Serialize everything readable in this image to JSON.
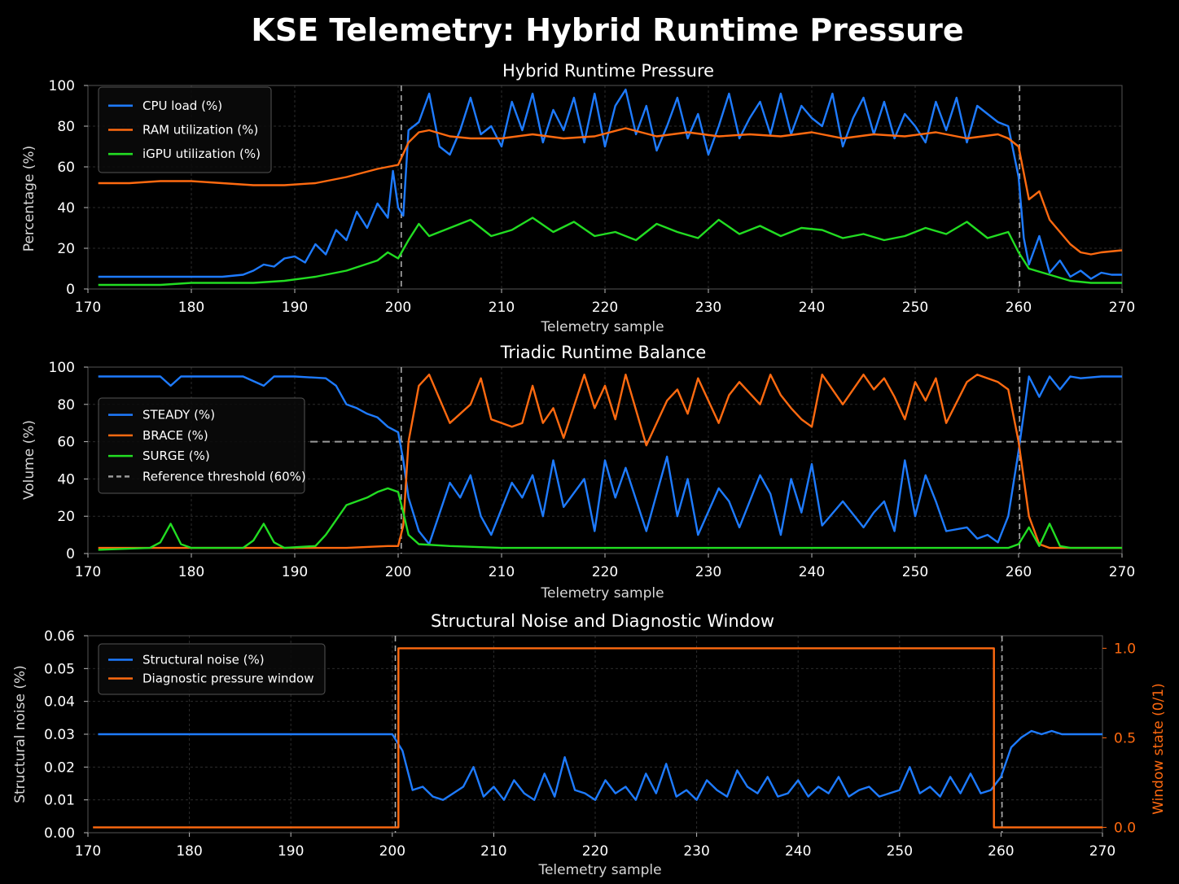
{
  "suptitle": "KSE Telemetry: Hybrid Runtime Pressure",
  "colors": {
    "background": "#000000",
    "blue": "#1e7bff",
    "orange": "#ff6a10",
    "green": "#22dd22",
    "threshold": "#9a9a9a"
  },
  "chart_data": [
    {
      "type": "line",
      "title": "Hybrid Runtime Pressure",
      "xlabel": "Telemetry sample",
      "ylabel": "Percentage (%)",
      "xlim": [
        170,
        270
      ],
      "ylim": [
        0,
        100
      ],
      "xticks": [
        170,
        180,
        190,
        200,
        210,
        220,
        230,
        240,
        250,
        260,
        270
      ],
      "yticks": [
        0,
        20,
        40,
        60,
        80,
        100
      ],
      "grid": true,
      "legend": "top-left",
      "vlines": [
        200.3,
        260.1
      ],
      "series": [
        {
          "name": "CPU load (%)",
          "color": "blue",
          "x": [
            171,
            173,
            175,
            177,
            179,
            181,
            183,
            185,
            186,
            187,
            188,
            189,
            190,
            191,
            192,
            193,
            194,
            195,
            196,
            197,
            198,
            199,
            199.5,
            200,
            200.5,
            201,
            202,
            203,
            204,
            205,
            206,
            207,
            208,
            209,
            210,
            211,
            212,
            213,
            214,
            215,
            216,
            217,
            218,
            219,
            220,
            221,
            222,
            223,
            224,
            225,
            226,
            227,
            228,
            229,
            230,
            231,
            232,
            233,
            234,
            235,
            236,
            237,
            238,
            239,
            240,
            241,
            242,
            243,
            244,
            245,
            246,
            247,
            248,
            249,
            250,
            251,
            252,
            253,
            254,
            255,
            256,
            257,
            258,
            259,
            260,
            260.5,
            261,
            262,
            263,
            264,
            265,
            266,
            267,
            268,
            269,
            270
          ],
          "values": [
            6,
            6,
            6,
            6,
            6,
            6,
            6,
            7,
            9,
            12,
            11,
            15,
            16,
            13,
            22,
            17,
            29,
            24,
            38,
            30,
            42,
            35,
            58,
            40,
            36,
            78,
            82,
            96,
            70,
            66,
            78,
            94,
            76,
            80,
            70,
            92,
            78,
            96,
            72,
            88,
            78,
            94,
            72,
            96,
            70,
            90,
            98,
            76,
            90,
            68,
            80,
            94,
            74,
            86,
            66,
            80,
            96,
            74,
            84,
            92,
            76,
            96,
            76,
            90,
            84,
            80,
            96,
            70,
            84,
            94,
            76,
            92,
            74,
            86,
            80,
            72,
            92,
            78,
            94,
            72,
            90,
            86,
            82,
            80,
            55,
            25,
            12,
            26,
            8,
            14,
            6,
            9,
            5,
            8,
            7,
            7
          ]
        },
        {
          "name": "RAM utilization (%)",
          "color": "orange",
          "x": [
            171,
            174,
            177,
            180,
            183,
            186,
            189,
            192,
            195,
            198,
            200,
            201,
            202,
            203,
            205,
            207,
            210,
            213,
            216,
            219,
            222,
            225,
            228,
            231,
            234,
            237,
            240,
            243,
            246,
            249,
            252,
            255,
            258,
            259,
            260,
            261,
            262,
            263,
            264,
            265,
            266,
            267,
            268,
            270
          ],
          "values": [
            52,
            52,
            53,
            53,
            52,
            51,
            51,
            52,
            55,
            59,
            61,
            72,
            77,
            78,
            75,
            74,
            74,
            76,
            74,
            75,
            79,
            75,
            77,
            75,
            76,
            75,
            77,
            74,
            76,
            75,
            77,
            74,
            76,
            74,
            70,
            44,
            48,
            34,
            28,
            22,
            18,
            17,
            18,
            19
          ]
        },
        {
          "name": "iGPU utilization (%)",
          "color": "green",
          "x": [
            171,
            174,
            177,
            180,
            183,
            186,
            189,
            192,
            195,
            198,
            199,
            200,
            201,
            202,
            203,
            205,
            207,
            209,
            211,
            213,
            215,
            217,
            219,
            221,
            223,
            225,
            227,
            229,
            231,
            233,
            235,
            237,
            239,
            241,
            243,
            245,
            247,
            249,
            251,
            253,
            255,
            257,
            259,
            260,
            261,
            263,
            265,
            267,
            270
          ],
          "values": [
            2,
            2,
            2,
            3,
            3,
            3,
            4,
            6,
            9,
            14,
            18,
            15,
            24,
            32,
            26,
            30,
            34,
            26,
            29,
            35,
            28,
            33,
            26,
            28,
            24,
            32,
            28,
            25,
            34,
            27,
            31,
            26,
            30,
            29,
            25,
            27,
            24,
            26,
            30,
            27,
            33,
            25,
            28,
            18,
            10,
            7,
            4,
            3,
            3
          ]
        }
      ]
    },
    {
      "type": "line",
      "title": "Triadic Runtime Balance",
      "xlabel": "Telemetry sample",
      "ylabel": "Volume (%)",
      "xlim": [
        170,
        270
      ],
      "ylim": [
        0,
        100
      ],
      "xticks": [
        170,
        180,
        190,
        200,
        210,
        220,
        230,
        240,
        250,
        260,
        270
      ],
      "yticks": [
        0,
        20,
        40,
        60,
        80,
        100
      ],
      "grid": true,
      "legend": "center-left",
      "vlines": [
        200.3,
        260.1
      ],
      "threshold": {
        "name": "Reference threshold (60%)",
        "y": 60,
        "x": [
          191.5,
          270
        ]
      },
      "series": [
        {
          "name": "STEADY (%)",
          "color": "blue",
          "x": [
            171,
            174,
            177,
            178,
            179,
            182,
            185,
            187,
            188,
            190,
            193,
            194,
            195,
            196,
            197,
            198,
            199,
            200,
            200.5,
            201,
            202,
            203,
            205,
            206,
            207,
            208,
            209,
            211,
            212,
            213,
            214,
            215,
            216,
            218,
            219,
            220,
            221,
            222,
            224,
            226,
            227,
            228,
            229,
            231,
            232,
            233,
            235,
            236,
            237,
            238,
            239,
            240,
            241,
            243,
            245,
            246,
            247,
            248,
            249,
            250,
            251,
            252,
            253,
            255,
            256,
            257,
            258,
            259,
            260,
            261,
            262,
            263,
            264,
            265,
            266,
            268,
            270
          ],
          "values": [
            95,
            95,
            95,
            90,
            95,
            95,
            95,
            90,
            95,
            95,
            94,
            90,
            80,
            78,
            75,
            73,
            68,
            65,
            50,
            30,
            12,
            5,
            38,
            30,
            42,
            20,
            10,
            38,
            30,
            42,
            20,
            50,
            25,
            40,
            12,
            50,
            30,
            46,
            12,
            52,
            20,
            40,
            10,
            35,
            28,
            14,
            42,
            32,
            10,
            40,
            22,
            48,
            15,
            28,
            14,
            22,
            28,
            12,
            50,
            20,
            42,
            28,
            12,
            14,
            8,
            10,
            6,
            20,
            55,
            95,
            84,
            95,
            88,
            95,
            94,
            95,
            95
          ]
        },
        {
          "name": "BRACE (%)",
          "color": "orange",
          "x": [
            171,
            180,
            190,
            195,
            199,
            200,
            200.5,
            201,
            202,
            203,
            205,
            206,
            207,
            208,
            209,
            211,
            212,
            213,
            214,
            215,
            216,
            218,
            219,
            220,
            221,
            222,
            224,
            226,
            227,
            228,
            229,
            231,
            232,
            233,
            235,
            236,
            237,
            238,
            239,
            240,
            241,
            243,
            245,
            246,
            247,
            248,
            249,
            250,
            251,
            252,
            253,
            255,
            256,
            257,
            258,
            259,
            260,
            261,
            262,
            263,
            270
          ],
          "values": [
            3,
            3,
            3,
            3,
            4,
            4,
            15,
            60,
            90,
            96,
            70,
            75,
            80,
            94,
            72,
            68,
            70,
            90,
            70,
            78,
            62,
            96,
            78,
            90,
            72,
            96,
            58,
            82,
            88,
            75,
            94,
            70,
            85,
            92,
            80,
            96,
            85,
            78,
            72,
            68,
            96,
            80,
            96,
            88,
            94,
            84,
            72,
            92,
            82,
            94,
            70,
            92,
            96,
            94,
            92,
            88,
            60,
            20,
            5,
            3,
            3
          ]
        },
        {
          "name": "SURGE (%)",
          "color": "green",
          "x": [
            171,
            176,
            177,
            178,
            179,
            180,
            185,
            186,
            187,
            188,
            189,
            192,
            193,
            194,
            195,
            196,
            197,
            198,
            199,
            200,
            200.5,
            201,
            202,
            205,
            210,
            215,
            220,
            225,
            230,
            235,
            240,
            245,
            250,
            255,
            259,
            260,
            261,
            262,
            263,
            264,
            265,
            270
          ],
          "values": [
            2,
            3,
            6,
            16,
            5,
            3,
            3,
            7,
            16,
            6,
            3,
            4,
            10,
            18,
            26,
            28,
            30,
            33,
            35,
            33,
            22,
            10,
            5,
            4,
            3,
            3,
            3,
            3,
            3,
            3,
            3,
            3,
            3,
            3,
            3,
            5,
            14,
            4,
            16,
            4,
            3,
            3
          ]
        }
      ]
    },
    {
      "type": "line",
      "title": "Structural Noise and Diagnostic Window",
      "xlabel": "Telemetry sample",
      "ylabel": "Structural noise (%)",
      "y2label": "Window state (0/1)",
      "xlim": [
        170,
        270
      ],
      "ylim": [
        0,
        0.06
      ],
      "y2lim": [
        -0.03,
        1.07
      ],
      "xticks": [
        170,
        180,
        190,
        200,
        210,
        220,
        230,
        240,
        250,
        260,
        270
      ],
      "yticks": [
        0.0,
        0.01,
        0.02,
        0.03,
        0.04,
        0.05,
        0.06
      ],
      "y2ticks": [
        0.0,
        0.5,
        1.0
      ],
      "grid": true,
      "legend": "top-left",
      "vlines": [
        200.3,
        260.1
      ],
      "series": [
        {
          "name": "Structural noise (%)",
          "color": "blue",
          "axis": "left",
          "x": [
            171,
            175,
            180,
            185,
            190,
            195,
            199,
            200,
            201,
            202,
            203,
            204,
            205,
            206,
            207,
            208,
            209,
            210,
            211,
            212,
            213,
            214,
            215,
            216,
            217,
            218,
            219,
            220,
            221,
            222,
            223,
            224,
            225,
            226,
            227,
            228,
            229,
            230,
            231,
            232,
            233,
            234,
            235,
            236,
            237,
            238,
            239,
            240,
            241,
            242,
            243,
            244,
            245,
            246,
            247,
            248,
            249,
            250,
            251,
            252,
            253,
            254,
            255,
            256,
            257,
            258,
            259,
            260,
            261,
            262,
            263,
            264,
            265,
            266,
            268,
            270
          ],
          "values": [
            0.03,
            0.03,
            0.03,
            0.03,
            0.03,
            0.03,
            0.03,
            0.03,
            0.025,
            0.013,
            0.014,
            0.011,
            0.01,
            0.012,
            0.014,
            0.02,
            0.011,
            0.014,
            0.01,
            0.016,
            0.012,
            0.01,
            0.018,
            0.011,
            0.023,
            0.013,
            0.012,
            0.01,
            0.016,
            0.012,
            0.014,
            0.01,
            0.018,
            0.012,
            0.021,
            0.011,
            0.013,
            0.01,
            0.016,
            0.013,
            0.011,
            0.019,
            0.014,
            0.012,
            0.017,
            0.011,
            0.012,
            0.016,
            0.011,
            0.014,
            0.012,
            0.017,
            0.011,
            0.013,
            0.014,
            0.011,
            0.012,
            0.013,
            0.02,
            0.012,
            0.014,
            0.011,
            0.017,
            0.012,
            0.018,
            0.012,
            0.013,
            0.017,
            0.026,
            0.029,
            0.031,
            0.03,
            0.031,
            0.03,
            0.03,
            0.03
          ]
        },
        {
          "name": "Diagnostic pressure window",
          "color": "orange",
          "axis": "right",
          "x": [
            170.5,
            200.6,
            200.6,
            259.3,
            259.3,
            270
          ],
          "values": [
            0,
            0,
            1,
            1,
            0,
            0
          ]
        }
      ]
    }
  ]
}
